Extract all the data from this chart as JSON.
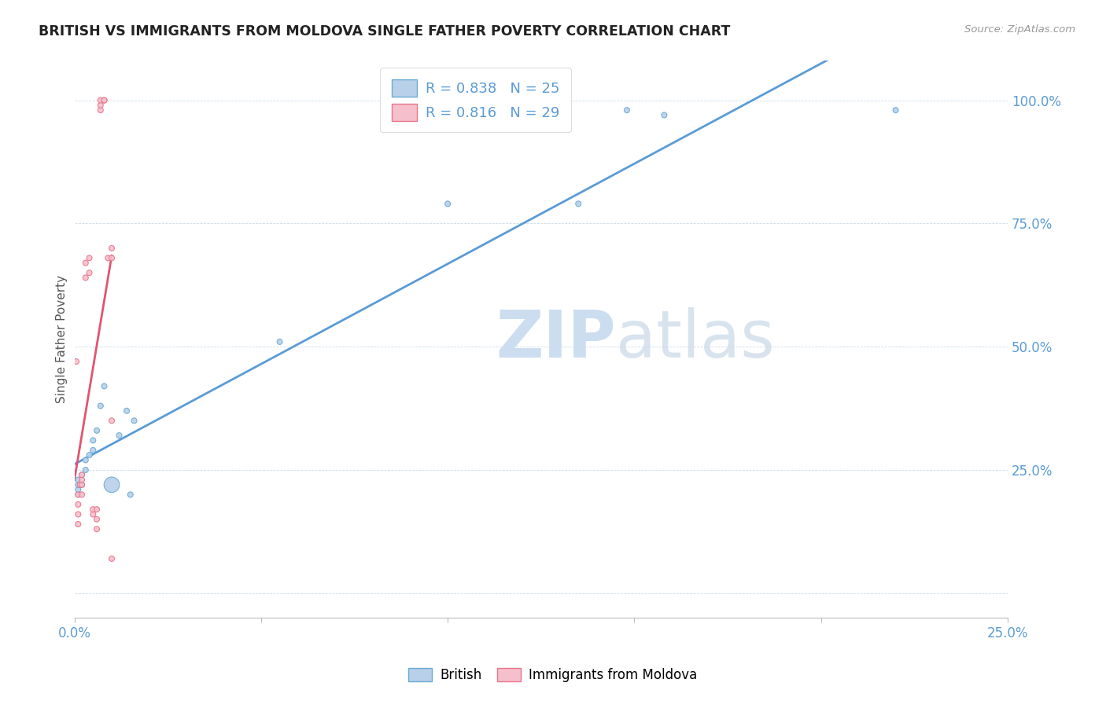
{
  "title": "BRITISH VS IMMIGRANTS FROM MOLDOVA SINGLE FATHER POVERTY CORRELATION CHART",
  "source": "Source: ZipAtlas.com",
  "ylabel": "Single Father Poverty",
  "xlim": [
    0.0,
    0.25
  ],
  "ylim": [
    -0.05,
    1.08
  ],
  "xticks": [
    0.0,
    0.05,
    0.1,
    0.15,
    0.2,
    0.25
  ],
  "yticks": [
    0.0,
    0.25,
    0.5,
    0.75,
    1.0
  ],
  "xtick_labels": [
    "0.0%",
    "",
    "",
    "",
    "",
    "25.0%"
  ],
  "ytick_labels": [
    "",
    "25.0%",
    "50.0%",
    "75.0%",
    "100.0%"
  ],
  "british_R": 0.838,
  "british_N": 25,
  "moldova_R": 0.816,
  "moldova_N": 29,
  "british_color": "#b8d0e8",
  "moldova_color": "#f5c0cc",
  "british_edge_color": "#6aaad4",
  "moldova_edge_color": "#e8758a",
  "british_line_color": "#5b9bd5",
  "moldova_line_color": "#e05570",
  "tick_color": "#5b9bd5",
  "watermark_color": "#ccddf0",
  "british_x": [
    0.001,
    0.001,
    0.001,
    0.001,
    0.002,
    0.002,
    0.003,
    0.003,
    0.004,
    0.005,
    0.005,
    0.006,
    0.007,
    0.008,
    0.01,
    0.012,
    0.014,
    0.015,
    0.016,
    0.055,
    0.1,
    0.135,
    0.148,
    0.158,
    0.22
  ],
  "british_y": [
    0.2,
    0.21,
    0.22,
    0.23,
    0.22,
    0.24,
    0.25,
    0.27,
    0.28,
    0.29,
    0.31,
    0.33,
    0.38,
    0.42,
    0.22,
    0.32,
    0.37,
    0.2,
    0.35,
    0.51,
    0.79,
    0.79,
    0.98,
    0.97,
    0.98
  ],
  "british_sizes": [
    25,
    25,
    25,
    25,
    25,
    25,
    25,
    25,
    25,
    25,
    25,
    25,
    25,
    25,
    200,
    25,
    25,
    25,
    25,
    25,
    25,
    25,
    25,
    25,
    25
  ],
  "moldova_x": [
    0.0005,
    0.001,
    0.001,
    0.001,
    0.001,
    0.0015,
    0.002,
    0.002,
    0.002,
    0.002,
    0.003,
    0.003,
    0.004,
    0.004,
    0.005,
    0.005,
    0.006,
    0.006,
    0.006,
    0.007,
    0.007,
    0.007,
    0.008,
    0.008,
    0.009,
    0.01,
    0.01,
    0.01,
    0.01
  ],
  "moldova_y": [
    0.47,
    0.14,
    0.16,
    0.18,
    0.2,
    0.22,
    0.2,
    0.22,
    0.23,
    0.24,
    0.64,
    0.67,
    0.65,
    0.68,
    0.16,
    0.17,
    0.13,
    0.15,
    0.17,
    0.98,
    0.99,
    1.0,
    1.0,
    1.0,
    0.68,
    0.07,
    0.35,
    0.68,
    0.7
  ],
  "moldova_sizes": [
    25,
    25,
    25,
    25,
    25,
    25,
    25,
    25,
    25,
    25,
    25,
    25,
    25,
    25,
    25,
    25,
    25,
    25,
    25,
    25,
    25,
    25,
    25,
    25,
    25,
    25,
    25,
    25,
    25
  ]
}
